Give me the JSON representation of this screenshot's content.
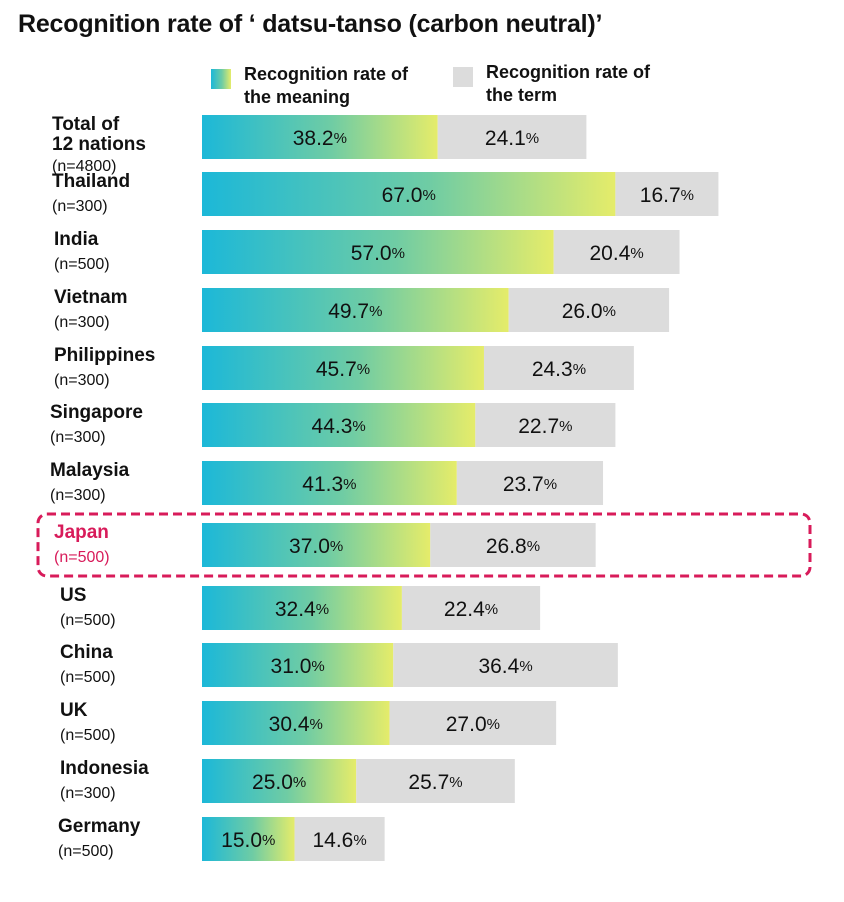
{
  "chart_data": {
    "type": "bar",
    "stacked": true,
    "orientation": "horizontal",
    "title": "Recognition rate of ‘ datsu-tanso (carbon neutral)’",
    "legend_placement": "top",
    "grid": false,
    "xlim": [
      0,
      100
    ],
    "series": [
      {
        "name": "Recognition rate of\nthe meaning",
        "color_start": "#1cb8d8",
        "color_end": "#e5ec6a",
        "values": [
          38.2,
          67.0,
          57.0,
          49.7,
          45.7,
          44.3,
          41.3,
          37.0,
          32.4,
          31.0,
          30.4,
          25.0,
          15.0
        ],
        "labels": [
          "38.2",
          "67.0",
          "57.0",
          "49.7",
          "45.7",
          "44.3",
          "41.3",
          "37.0",
          "32.4",
          "31.0",
          "30.4",
          "25.0",
          "15.0"
        ]
      },
      {
        "name": "Recognition rate of\nthe term",
        "color": "#dcdcdc",
        "values": [
          24.1,
          16.7,
          20.4,
          26.0,
          24.3,
          22.7,
          23.7,
          26.8,
          22.4,
          36.4,
          27.0,
          25.7,
          14.6
        ],
        "labels": [
          "24.1",
          "16.7",
          "20.4",
          "26.0",
          "24.3",
          "22.7",
          "23.7",
          "26.8",
          "22.4",
          "36.4",
          "27.0",
          "25.7",
          "14.6"
        ]
      }
    ],
    "percent_symbol": "%",
    "categories": [
      {
        "name": "Total of\n12 nations",
        "n": "(n=4800)"
      },
      {
        "name": "Thailand",
        "n": "(n=300)"
      },
      {
        "name": "India",
        "n": "(n=500)"
      },
      {
        "name": "Vietnam",
        "n": "(n=300)"
      },
      {
        "name": "Philippines",
        "n": "(n=300)"
      },
      {
        "name": "Singapore",
        "n": "(n=300)"
      },
      {
        "name": "Malaysia",
        "n": "(n=300)"
      },
      {
        "name": "Japan",
        "n": "(n=500)",
        "highlight": true
      },
      {
        "name": "US",
        "n": "(n=500)"
      },
      {
        "name": "China",
        "n": "(n=500)"
      },
      {
        "name": "UK",
        "n": "(n=500)"
      },
      {
        "name": "Indonesia",
        "n": "(n=300)"
      },
      {
        "name": "Germany",
        "n": "(n=500)"
      }
    ],
    "highlight_color": "#d81b5a"
  }
}
